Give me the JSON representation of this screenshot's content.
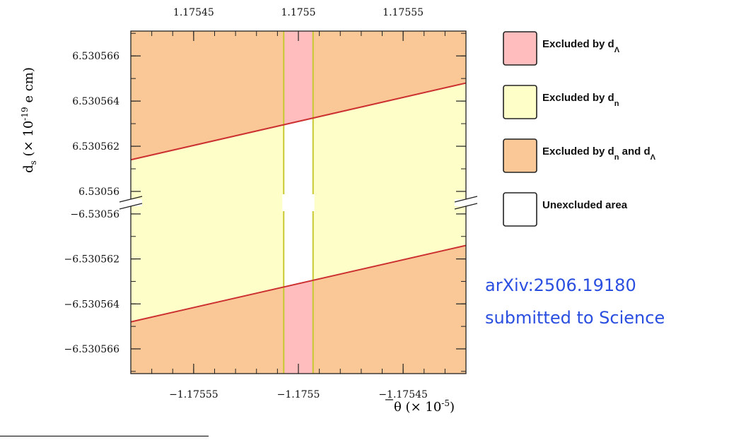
{
  "chart_data": {
    "type": "area",
    "axes": {
      "x_bottom": {
        "label_symbol": "θ",
        "label_suffix": "(× 10",
        "label_exponent": "-5",
        "label_close": ")",
        "range": [
          -1.17558,
          -1.17542
        ],
        "ticks": [
          -1.17555,
          -1.1755,
          -1.17545
        ],
        "tick_labels": [
          "−1.17555",
          "−1.1755",
          "−1.17545"
        ]
      },
      "x_top": {
        "range": [
          1.17542,
          1.17558
        ],
        "ticks": [
          1.17545,
          1.1755,
          1.17555
        ],
        "tick_labels": [
          "1.17545",
          "1.1755",
          "1.17555"
        ]
      },
      "y": {
        "label_symbol": "d",
        "label_sub": "s",
        "label_suffix": "(× 10",
        "label_exponent": "-19",
        "label_close": "e cm)",
        "broken": true,
        "upper_segment": {
          "range": [
            6.5305595,
            6.5305671
          ],
          "ticks": [
            6.53056,
            6.530562,
            6.530564,
            6.530566
          ],
          "tick_labels": [
            "6.53056",
            "6.530562",
            "6.530564",
            "6.530566"
          ]
        },
        "lower_segment": {
          "range": [
            -6.5305671,
            -6.5305595
          ],
          "ticks": [
            -6.530566,
            -6.530564,
            -6.530562,
            -6.53056
          ],
          "tick_labels": [
            "−6.530566",
            "−6.530564",
            "−6.530562",
            "−6.53056"
          ]
        }
      }
    },
    "regions": {
      "d_lambda_allowed_x_band": [
        -1.175507,
        -1.175493
      ],
      "d_n_boundary_upper": {
        "x": [
          -1.17558,
          -1.17542
        ],
        "y": [
          6.5305614,
          6.5305648
        ]
      },
      "d_n_boundary_lower": {
        "x": [
          -1.17558,
          -1.17542
        ],
        "y": [
          -6.5305648,
          -6.5305614
        ]
      }
    },
    "legend": {
      "placement": "right",
      "entries": [
        {
          "text": "Excluded by d",
          "sub": "Λ",
          "tail": "",
          "tail_sub": "",
          "color": "#ffbdbd"
        },
        {
          "text": "Excluded by d",
          "sub": "n",
          "tail": "",
          "tail_sub": "",
          "color": "#fefec8"
        },
        {
          "text": "Excluded by d",
          "sub": "n",
          "tail": " and d",
          "tail_sub": "Λ",
          "color": "#f9c896"
        },
        {
          "text": "Unexcluded area",
          "sub": "",
          "tail": "",
          "tail_sub": "",
          "color": "#ffffff"
        }
      ]
    },
    "colors": {
      "both": "#f9c896",
      "dn_only": "#fefec8",
      "dlambda_only": "#ffbdbd",
      "allowed": "#ffffff",
      "boundary_line": "#cc3030",
      "band_line": "#c8c832"
    }
  },
  "annotation": {
    "line1": "arXiv:2506.19180",
    "line2": "submitted to Science"
  }
}
